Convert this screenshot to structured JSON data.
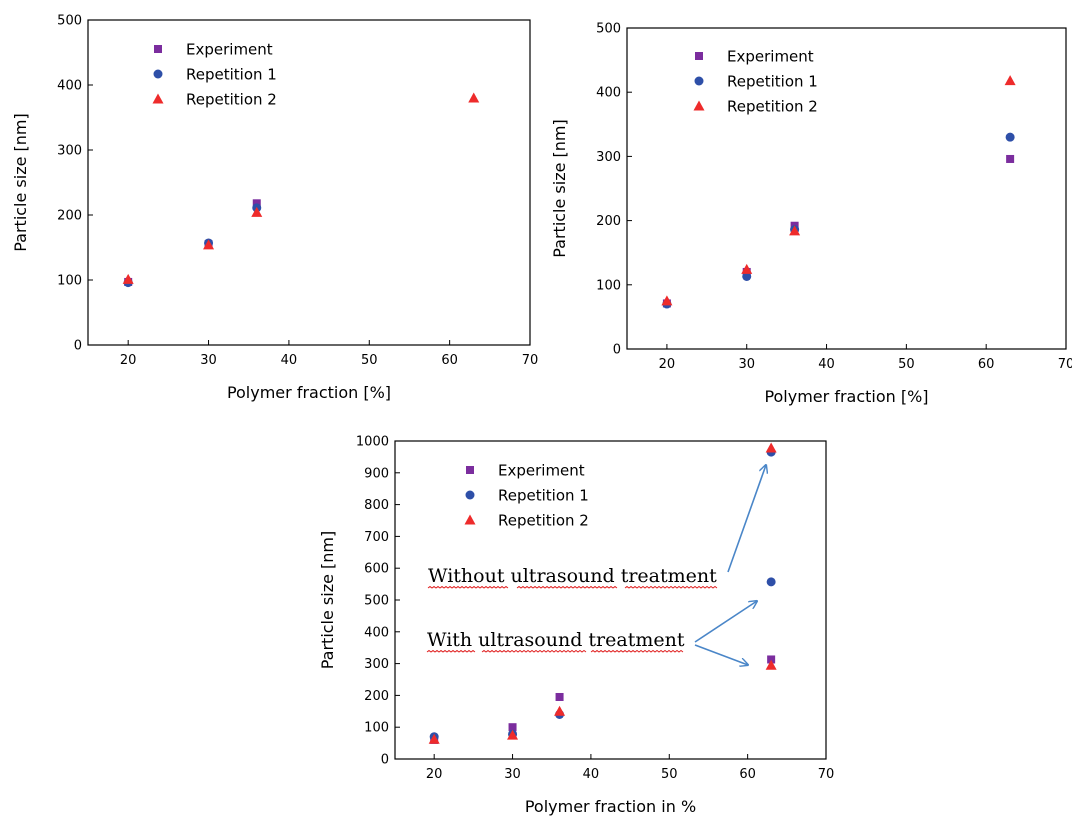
{
  "colors": {
    "experiment": "#7b2d9e",
    "repetition1": "#2e4fa8",
    "repetition2": "#ee2b2b",
    "arrow": "#4a86c8",
    "spellcheck": "#e02020"
  },
  "chart_data": [
    {
      "type": "scatter",
      "xlabel": "Polymer fraction [%]",
      "ylabel": "Particle size [nm]",
      "xlim": [
        15,
        70
      ],
      "ylim": [
        0,
        500
      ],
      "xticks": [
        20,
        30,
        40,
        50,
        60,
        70
      ],
      "yticks": [
        0,
        100,
        200,
        300,
        400,
        500
      ],
      "legend": "top-left",
      "grid": false,
      "series": [
        {
          "name": "Experiment",
          "marker": "square",
          "x": [
            20,
            30,
            36
          ],
          "y": [
            97,
            155,
            218
          ]
        },
        {
          "name": "Repetition 1",
          "marker": "circle",
          "x": [
            20,
            30,
            36
          ],
          "y": [
            96,
            157,
            211
          ]
        },
        {
          "name": "Repetition 2",
          "marker": "triangle",
          "x": [
            20,
            30,
            36,
            63
          ],
          "y": [
            101,
            154,
            204,
            380
          ]
        }
      ]
    },
    {
      "type": "scatter",
      "xlabel": "Polymer fraction [%]",
      "ylabel": "Particle size [nm]",
      "xlim": [
        15,
        70
      ],
      "ylim": [
        0,
        500
      ],
      "xticks": [
        20,
        30,
        40,
        50,
        60,
        70
      ],
      "yticks": [
        0,
        100,
        200,
        300,
        400,
        500
      ],
      "legend": "top-left",
      "grid": false,
      "series": [
        {
          "name": "Experiment",
          "marker": "square",
          "x": [
            20,
            30,
            36,
            63
          ],
          "y": [
            71,
            120,
            192,
            296
          ]
        },
        {
          "name": "Repetition 1",
          "marker": "circle",
          "x": [
            20,
            30,
            36,
            63
          ],
          "y": [
            70,
            113,
            186,
            330
          ]
        },
        {
          "name": "Repetition 2",
          "marker": "triangle",
          "x": [
            20,
            30,
            36,
            63
          ],
          "y": [
            75,
            124,
            184,
            418
          ]
        }
      ]
    },
    {
      "type": "scatter",
      "xlabel": "Polymer fraction in %",
      "ylabel": "Particle size [nm]",
      "xlim": [
        15,
        70
      ],
      "ylim": [
        0,
        1000
      ],
      "xticks": [
        20,
        30,
        40,
        50,
        60,
        70
      ],
      "yticks": [
        0,
        100,
        200,
        300,
        400,
        500,
        600,
        700,
        800,
        900,
        1000
      ],
      "legend": "top-left",
      "grid": false,
      "series": [
        {
          "name": "Experiment",
          "marker": "square",
          "x": [
            20,
            30,
            36,
            63
          ],
          "y": [
            60,
            100,
            195,
            313
          ]
        },
        {
          "name": "Repetition 1",
          "marker": "circle",
          "x": [
            20,
            30,
            36,
            63,
            63
          ],
          "y": [
            70,
            78,
            140,
            557,
            965
          ]
        },
        {
          "name": "Repetition 2",
          "marker": "triangle",
          "x": [
            20,
            30,
            36,
            63,
            63
          ],
          "y": [
            62,
            75,
            150,
            295,
            978
          ]
        }
      ],
      "annotations": [
        {
          "text": "Without ultrasound treatment"
        },
        {
          "text": "With ultrasound treatment"
        }
      ]
    }
  ]
}
